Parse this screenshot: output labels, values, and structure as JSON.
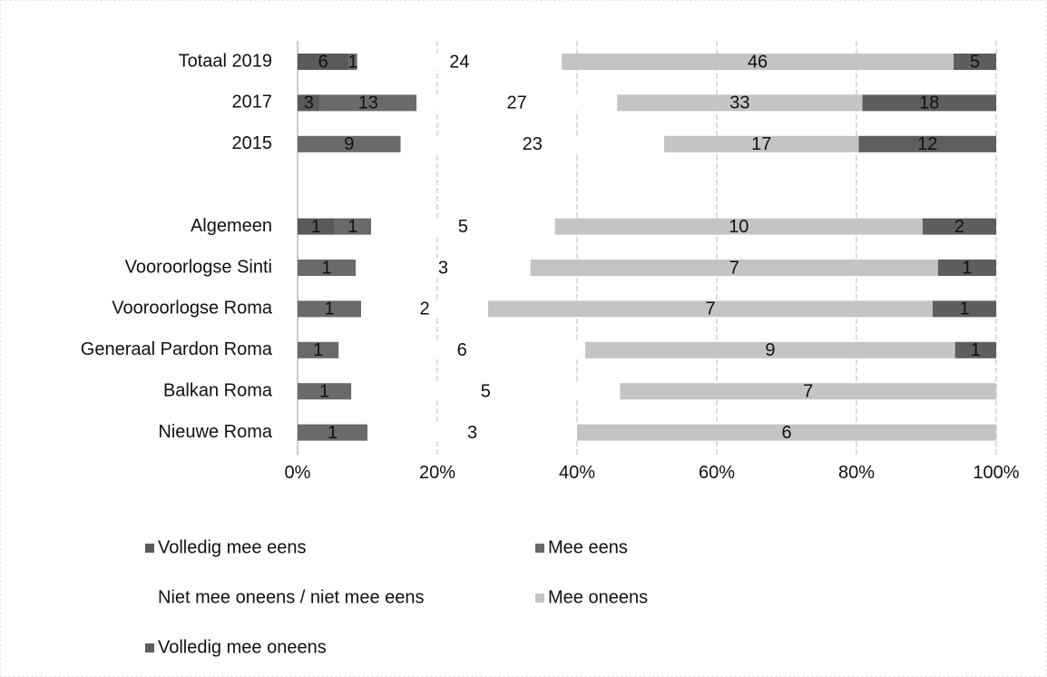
{
  "chart_data": {
    "type": "bar",
    "orientation": "horizontal",
    "stacked": "percent",
    "categories": [
      "Totaal 2019",
      "2017",
      "2015",
      null,
      "Algemeen",
      "Vooroorlogse Sinti",
      "Vooroorlogse Roma",
      "Generaal Pardon Roma",
      "Balkan Roma",
      "Nieuwe Roma"
    ],
    "series": [
      {
        "name": "Volledig mee eens",
        "color": "#5a5a5a",
        "values": [
          6,
          3,
          null,
          null,
          1,
          null,
          null,
          null,
          null,
          null
        ]
      },
      {
        "name": "Mee eens",
        "color": "#6a6a6a",
        "values": [
          1,
          13,
          9,
          null,
          1,
          1,
          1,
          1,
          1,
          1
        ]
      },
      {
        "name": "Niet mee oneens / niet mee eens",
        "color": "#ffffff",
        "values": [
          24,
          27,
          23,
          null,
          5,
          3,
          2,
          6,
          5,
          3
        ]
      },
      {
        "name": "Mee oneens",
        "color": "#c4c4c4",
        "values": [
          46,
          33,
          17,
          null,
          10,
          7,
          7,
          9,
          7,
          6
        ]
      },
      {
        "name": "Volledig mee oneens",
        "color": "#5e5e5e",
        "values": [
          5,
          18,
          12,
          null,
          2,
          1,
          1,
          1,
          null,
          null
        ]
      }
    ],
    "xlim": [
      0,
      100
    ],
    "xticks": [
      {
        "value": 0,
        "label": "0%"
      },
      {
        "value": 20,
        "label": "20%"
      },
      {
        "value": 40,
        "label": "40%"
      },
      {
        "value": 60,
        "label": "60%"
      },
      {
        "value": 80,
        "label": "80%"
      },
      {
        "value": 100,
        "label": "100%"
      }
    ],
    "grid": true
  }
}
